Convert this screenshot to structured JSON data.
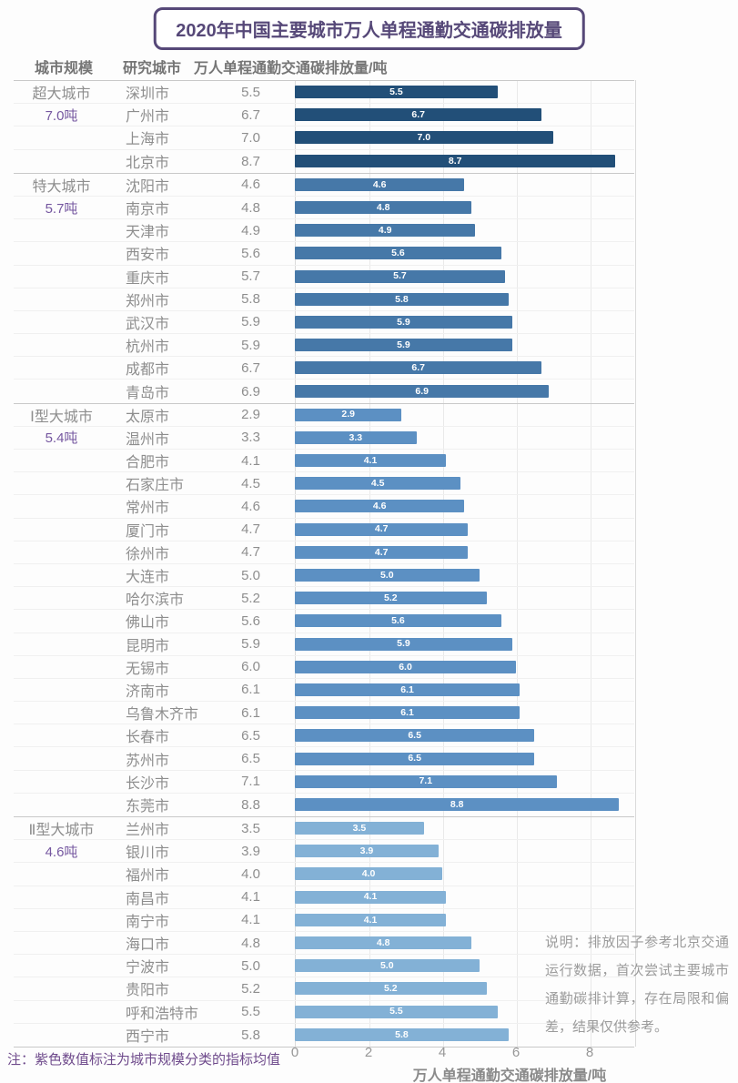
{
  "title": "2020年中国主要城市万人单程通勤交通碳排放量",
  "columns": {
    "scale": "城市规模",
    "city": "研究城市",
    "value": "万人单程通勤交通碳排放量/吨"
  },
  "footnote": "注：紫色数值标注为城市规模分类的指标均值",
  "side_note": "说明：排放因子参考北京交通运行数据，首次尝试主要城市通勤碳排计算，存在局限和偏差，结果仅供参考。",
  "colors": {
    "title_purple": "#564878",
    "note_purple": "#6f4b8c",
    "mean_purple": "#7557a0",
    "bar_super": "#224F78",
    "bar_mega": "#4678A8",
    "bar_type1": "#5C90C3",
    "bar_type2": "#83B1D6",
    "text_gray": "#8e8e8e"
  },
  "chart_data": {
    "type": "bar",
    "orientation": "horizontal",
    "title": "2020年中国主要城市万人单程通勤交通碳排放量",
    "xlabel": "万人单程通勤交通碳排放量/吨",
    "xticks": [
      0,
      2,
      4,
      6,
      8
    ],
    "xlim": [
      0,
      9.2
    ],
    "grid": true,
    "groups": [
      {
        "scale": "超大城市",
        "mean": "7.0吨",
        "color_key": "bar_super",
        "cities": [
          "深圳市",
          "广州市",
          "上海市",
          "北京市"
        ],
        "values": [
          "5.5",
          "6.7",
          "7.0",
          "8.7"
        ]
      },
      {
        "scale": "特大城市",
        "mean": "5.7吨",
        "color_key": "bar_mega",
        "cities": [
          "沈阳市",
          "南京市",
          "天津市",
          "西安市",
          "重庆市",
          "郑州市",
          "武汉市",
          "杭州市",
          "成都市",
          "青岛市"
        ],
        "values": [
          "4.6",
          "4.8",
          "4.9",
          "5.6",
          "5.7",
          "5.8",
          "5.9",
          "5.9",
          "6.7",
          "6.9"
        ]
      },
      {
        "scale": "Ⅰ型大城市",
        "mean": "5.4吨",
        "color_key": "bar_type1",
        "cities": [
          "太原市",
          "温州市",
          "合肥市",
          "石家庄市",
          "常州市",
          "厦门市",
          "徐州市",
          "大连市",
          "哈尔滨市",
          "佛山市",
          "昆明市",
          "无锡市",
          "济南市",
          "乌鲁木齐市",
          "长春市",
          "苏州市",
          "长沙市",
          "东莞市"
        ],
        "values": [
          "2.9",
          "3.3",
          "4.1",
          "4.5",
          "4.6",
          "4.7",
          "4.7",
          "5.0",
          "5.2",
          "5.6",
          "5.9",
          "6.0",
          "6.1",
          "6.1",
          "6.5",
          "6.5",
          "7.1",
          "8.8"
        ]
      },
      {
        "scale": "Ⅱ型大城市",
        "mean": "4.6吨",
        "color_key": "bar_type2",
        "cities": [
          "兰州市",
          "银川市",
          "福州市",
          "南昌市",
          "南宁市",
          "海口市",
          "宁波市",
          "贵阳市",
          "呼和浩特市",
          "西宁市"
        ],
        "values": [
          "3.5",
          "3.9",
          "4.0",
          "4.1",
          "4.1",
          "4.8",
          "5.0",
          "5.2",
          "5.5",
          "5.8"
        ]
      }
    ]
  }
}
